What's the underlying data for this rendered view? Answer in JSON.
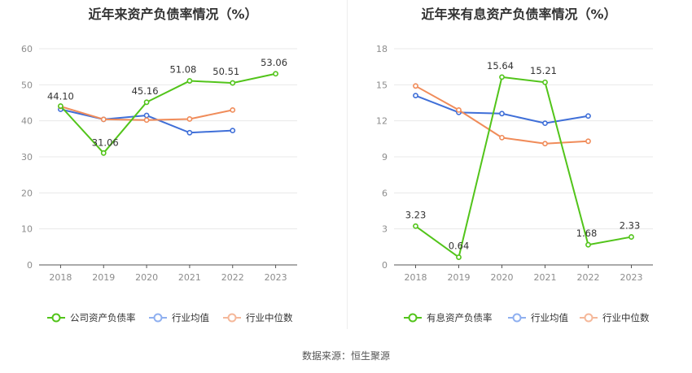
{
  "source": "数据来源：恒生聚源",
  "chart_data": [
    {
      "type": "line",
      "title": "近年来资产负债率情况（%）",
      "categories": [
        "2018",
        "2019",
        "2020",
        "2021",
        "2022",
        "2023"
      ],
      "ylim": [
        0,
        60
      ],
      "yticks": [
        "0",
        "10",
        "20",
        "30",
        "40",
        "50",
        "60"
      ],
      "grid": true,
      "legend": "bottom",
      "series": [
        {
          "name": "公司资产负债率",
          "color": "#52c41a",
          "values": [
            44.1,
            31.06,
            45.16,
            51.08,
            50.51,
            53.06
          ],
          "labels": [
            "44.10",
            "31.06",
            "45.16",
            "51.08",
            "50.51",
            "53.06"
          ]
        },
        {
          "name": "行业均值",
          "color": "#3f6fd8",
          "values": [
            43.2,
            40.4,
            41.5,
            36.7,
            37.3,
            null
          ]
        },
        {
          "name": "行业中位数",
          "color": "#f08c5a",
          "values": [
            44.0,
            40.4,
            40.2,
            40.5,
            43.0,
            null
          ]
        }
      ],
      "legend_colors": [
        "#52c41a",
        "#8fb0f0",
        "#f5b89a"
      ]
    },
    {
      "type": "line",
      "title": "近年来有息资产负债率情况（%）",
      "categories": [
        "2018",
        "2019",
        "2020",
        "2021",
        "2022",
        "2023"
      ],
      "ylim": [
        0,
        18
      ],
      "yticks": [
        "0",
        "3",
        "6",
        "9",
        "12",
        "15",
        "18"
      ],
      "grid": true,
      "legend": "bottom",
      "series": [
        {
          "name": "有息资产负债率",
          "color": "#52c41a",
          "values": [
            3.23,
            0.64,
            15.64,
            15.21,
            1.68,
            2.33
          ],
          "labels": [
            "3.23",
            "0.64",
            "15.64",
            "15.21",
            "1.68",
            "2.33"
          ]
        },
        {
          "name": "行业均值",
          "color": "#3f6fd8",
          "values": [
            14.1,
            12.7,
            12.6,
            11.8,
            12.4,
            null
          ]
        },
        {
          "name": "行业中位数",
          "color": "#f08c5a",
          "values": [
            14.9,
            12.9,
            10.6,
            10.1,
            10.3,
            null
          ]
        }
      ],
      "legend_colors": [
        "#52c41a",
        "#8fb0f0",
        "#f5b89a"
      ]
    }
  ]
}
